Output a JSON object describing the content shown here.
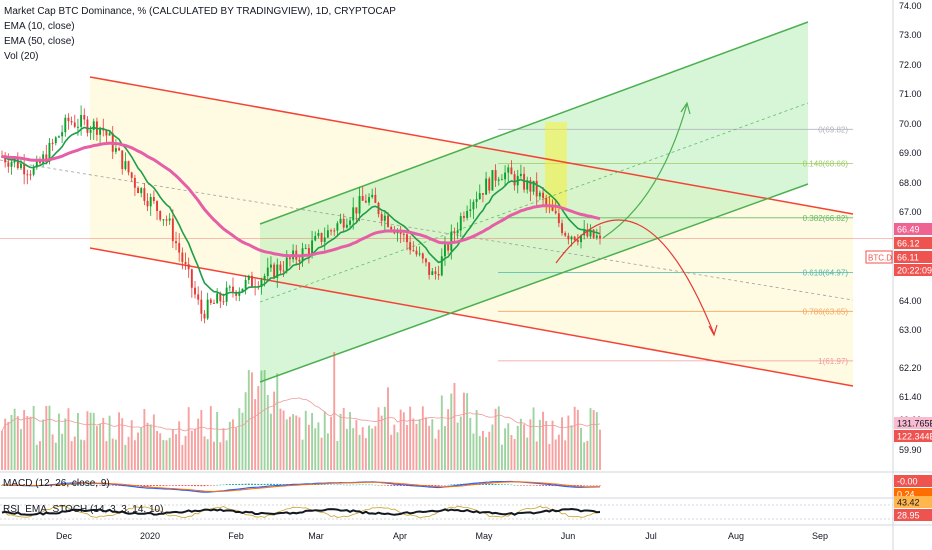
{
  "legend": {
    "title": "Market Cap BTC Dominance, % (CALCULATED BY TRADINGVIEW), 1D, CRYPTOCAP",
    "ema10": "EMA (10, close)",
    "ema50": "EMA (50, close)",
    "vol": "Vol (20)"
  },
  "panes": {
    "macd_label": "MACD (12, 26, close, 9)",
    "rsi_label": "RSI_EMA_STOCH (14, 3, 3, 14, 10)"
  },
  "colors": {
    "up": "#26a69a",
    "down": "#ef5350",
    "bull_candle": "#0aa02a",
    "bear_candle": "#e53935",
    "channel_down": "#f44336",
    "channel_up": "#4caf50",
    "ema10": "#1e9e46",
    "ema50": "#e55ea6",
    "fib": "#f4a460",
    "vol_up": "#4caf50",
    "vol_down": "#ef5350",
    "price_tag": "#ef5350",
    "time_tag": "#131722"
  },
  "chart_data": {
    "type": "candlestick",
    "title": "Market Cap BTC Dominance, % (CALCULATED BY TRADINGVIEW), 1D, CRYPTOCAP",
    "y_axis_ticks": [
      "74.00",
      "73.00",
      "72.00",
      "71.00",
      "70.00",
      "69.00",
      "68.00",
      "67.00",
      "66.00",
      "65.00",
      "64.00",
      "63.00",
      "62.20",
      "61.40",
      "60.60",
      "59.90"
    ],
    "x_axis_ticks": [
      "Dec",
      "2020",
      "Feb",
      "Mar",
      "Apr",
      "May",
      "Jun",
      "Jul",
      "Aug",
      "Sep"
    ],
    "ylim": [
      59.6,
      74.2
    ],
    "key_points": [
      {
        "date": "Dec start",
        "close": 68.9
      },
      {
        "date": "mid Dec",
        "close": 68.4
      },
      {
        "date": "late Dec",
        "close": 70.1
      },
      {
        "date": "2020 start",
        "close": 69.9
      },
      {
        "date": "mid Jan",
        "close": 68.0
      },
      {
        "date": "late Jan",
        "close": 66.7
      },
      {
        "date": "mid Feb",
        "close": 63.6
      },
      {
        "date": "late Feb",
        "close": 64.4
      },
      {
        "date": "early Mar",
        "close": 64.9
      },
      {
        "date": "mid Mar",
        "close": 65.6
      },
      {
        "date": "late Mar",
        "close": 66.5
      },
      {
        "date": "early Apr",
        "close": 67.5
      },
      {
        "date": "mid Apr",
        "close": 66.3
      },
      {
        "date": "late Apr",
        "close": 64.8
      },
      {
        "date": "early May",
        "close": 67.3
      },
      {
        "date": "mid May",
        "close": 68.4
      },
      {
        "date": "late May",
        "close": 67.8
      },
      {
        "date": "early Jun",
        "close": 66.3
      },
      {
        "date": "Jun",
        "close": 66.12
      }
    ],
    "price_labels": {
      "ema50": "66.49",
      "last": "66.12",
      "symbol": "BTC.D",
      "symbol_value": "66.11",
      "countdown": "20:22:09"
    },
    "fib_levels": [
      {
        "label": "0(69.82)",
        "value": 69.82
      },
      {
        "label": "0.148(68.66)",
        "value": 68.66
      },
      {
        "label": "0.382(66.82)",
        "value": 66.82
      },
      {
        "label": "0.618(64.97)",
        "value": 64.97
      },
      {
        "label": "0.786(63.65)",
        "value": 63.65
      },
      {
        "label": "1(61.97)",
        "value": 61.97
      }
    ],
    "volume_labels": {
      "ma": "131.765B",
      "last": "122.344B"
    },
    "macd_labels": {
      "macd": "-0.00",
      "signal": "0.24"
    },
    "rsi_labels": {
      "k": "43.42",
      "d": "28.95"
    }
  }
}
